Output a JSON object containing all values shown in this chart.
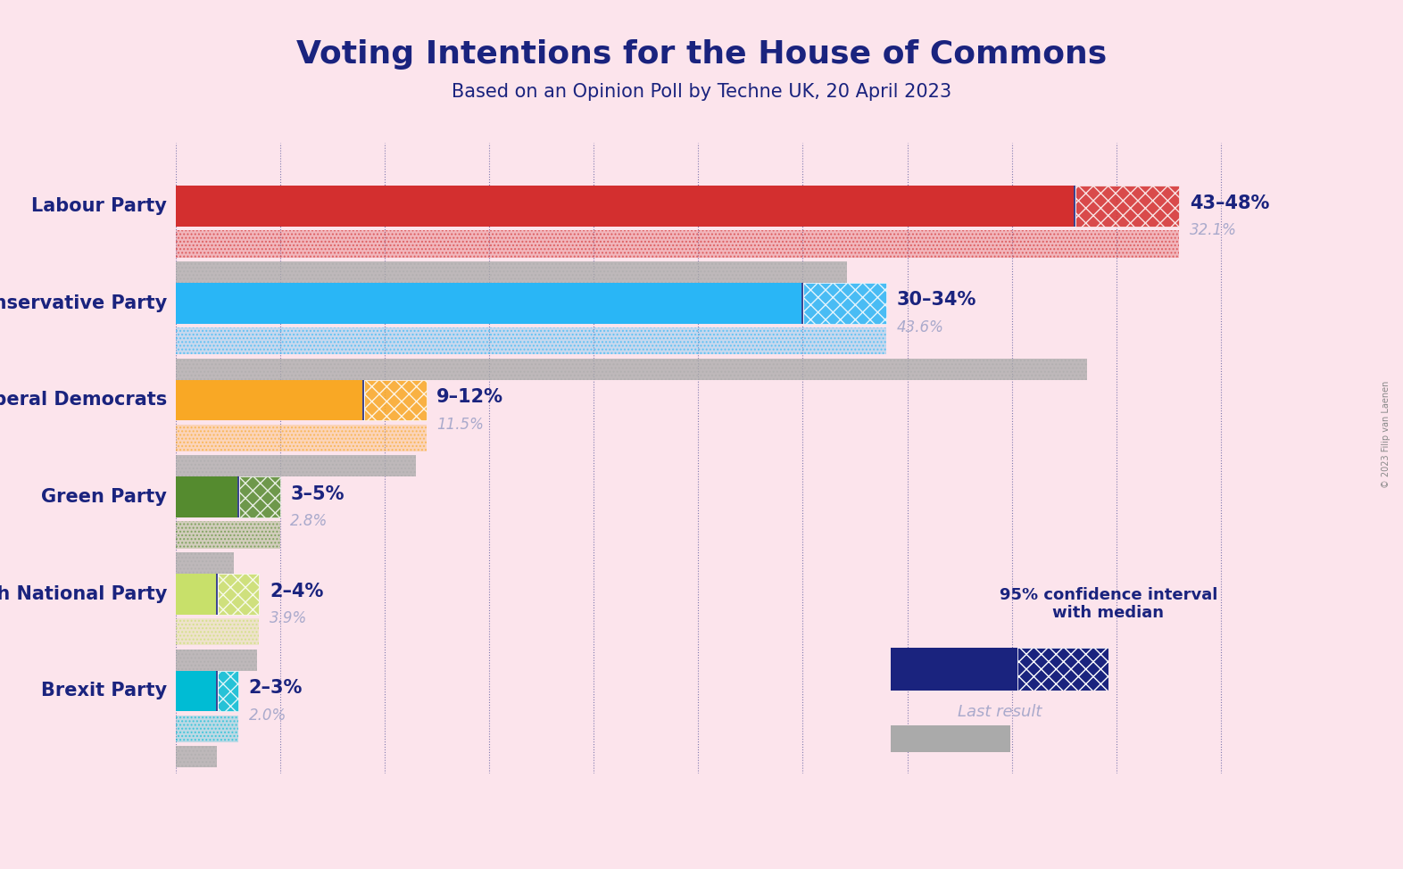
{
  "title": "Voting Intentions for the House of Commons",
  "subtitle": "Based on an Opinion Poll by Techne UK, 20 April 2023",
  "copyright": "© 2023 Filip van Laenen",
  "background_color": "#fce4ec",
  "title_color": "#1a237e",
  "subtitle_color": "#1a237e",
  "parties": [
    "Labour Party",
    "Conservative Party",
    "Liberal Democrats",
    "Green Party",
    "Scottish National Party",
    "Brexit Party"
  ],
  "party_colors": [
    "#d32f2f",
    "#29b6f6",
    "#f9a825",
    "#558b2f",
    "#c8e06a",
    "#00bcd4"
  ],
  "ci_low": [
    43,
    30,
    9,
    3,
    2,
    2
  ],
  "ci_high": [
    48,
    34,
    12,
    5,
    4,
    3
  ],
  "last_result": [
    32.1,
    43.6,
    11.5,
    2.8,
    3.9,
    2.0
  ],
  "range_labels": [
    "43–48%",
    "30–34%",
    "9–12%",
    "3–5%",
    "2–4%",
    "2–3%"
  ],
  "label_color": "#1a237e",
  "last_result_color": "#aaaacc",
  "xlim": [
    0,
    52
  ],
  "legend_text_ci": "95% confidence interval\nwith median",
  "legend_text_last": "Last result",
  "navy_color": "#1a237e",
  "gray_color": "#aaaaaa"
}
